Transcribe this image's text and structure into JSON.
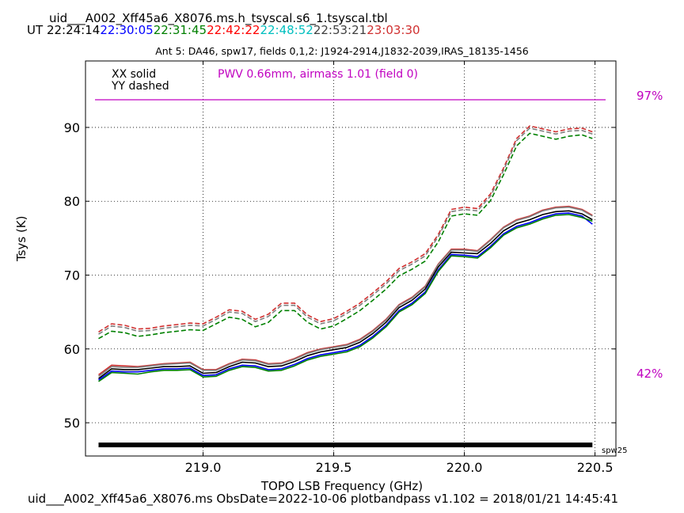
{
  "header": {
    "file_title": "uid___A002_Xff45a6_X8076.ms.h_tsyscal.s6_1.tsyscal.tbl",
    "ut_label": "UT",
    "ut_times": [
      {
        "text": "22:24:14",
        "color": "#000000"
      },
      {
        "text": "22:30:05",
        "color": "#0000ff"
      },
      {
        "text": "22:31:45",
        "color": "#008000"
      },
      {
        "text": "22:42:22",
        "color": "#ff0000"
      },
      {
        "text": "22:48:52",
        "color": "#00bfbf"
      },
      {
        "text": "22:53:21",
        "color": "#404040"
      },
      {
        "text": "23:03:30",
        "color": "#d03030"
      }
    ],
    "subtitle": "Ant 5: DA46,  spw17,  fields 0,1,2: J1924-2914,J1832-2039,IRAS_18135-1456"
  },
  "legend": {
    "xx": "XX solid",
    "yy": "YY dashed",
    "pwv": "PWV 0.66mm, airmass 1.01 (field 0)",
    "pwv_color": "#c000c0"
  },
  "atm": {
    "top_label": "97%",
    "bottom_label": "42%",
    "line_level_pct": 97,
    "color": "#c000c0"
  },
  "footer": {
    "text": "uid___A002_Xff45a6_X8076.ms  ObsDate=2022-10-06   plotbandpass v1.102 = 2018/01/21 14:45:41"
  },
  "chart_data": {
    "type": "line",
    "xlabel": "TOPO LSB Frequency (GHz)",
    "ylabel": "Tsys (K)",
    "xlim": [
      218.55,
      220.58
    ],
    "ylim": [
      45.5,
      99.0
    ],
    "xticks": [
      219.0,
      219.5,
      220.0,
      220.5
    ],
    "yticks": [
      50,
      60,
      70,
      80,
      90
    ],
    "grid": true,
    "spw_bar": {
      "label": "spw25",
      "x": [
        218.6,
        220.49
      ],
      "y": 47.0
    },
    "x": [
      218.6,
      218.65,
      218.7,
      218.75,
      218.8,
      218.85,
      218.9,
      218.95,
      219.0,
      219.05,
      219.1,
      219.15,
      219.2,
      219.25,
      219.3,
      219.35,
      219.4,
      219.45,
      219.5,
      219.55,
      219.6,
      219.65,
      219.7,
      219.75,
      219.8,
      219.85,
      219.9,
      219.95,
      220.0,
      220.05,
      220.1,
      220.15,
      220.2,
      220.25,
      220.3,
      220.35,
      220.4,
      220.45,
      220.49
    ],
    "series": [
      {
        "pol": "XX",
        "color": "#d03030",
        "dashed": false,
        "values": [
          56.5,
          57.8,
          57.7,
          57.6,
          57.8,
          58.0,
          58.1,
          58.2,
          57.2,
          57.2,
          58.0,
          58.6,
          58.5,
          58.0,
          58.1,
          58.7,
          59.5,
          60.0,
          60.3,
          60.6,
          61.3,
          62.5,
          64.0,
          66.0,
          67.0,
          68.5,
          71.5,
          73.5,
          73.5,
          73.3,
          74.8,
          76.5,
          77.5,
          78.0,
          78.8,
          79.2,
          79.3,
          78.9,
          78.1
        ]
      },
      {
        "pol": "XX",
        "color": "#808080",
        "dashed": false,
        "values": [
          56.3,
          57.6,
          57.5,
          57.5,
          57.7,
          57.9,
          58.0,
          58.1,
          57.1,
          57.1,
          57.9,
          58.5,
          58.4,
          57.9,
          58.0,
          58.6,
          59.4,
          59.9,
          60.2,
          60.5,
          61.2,
          62.4,
          63.9,
          65.9,
          66.9,
          68.4,
          71.4,
          73.4,
          73.4,
          73.2,
          74.7,
          76.4,
          77.4,
          77.9,
          78.7,
          79.1,
          79.2,
          78.8,
          78.0
        ]
      },
      {
        "pol": "XX",
        "color": "#000000",
        "dashed": false,
        "values": [
          56.0,
          57.3,
          57.2,
          57.2,
          57.4,
          57.6,
          57.6,
          57.7,
          56.7,
          56.8,
          57.6,
          58.2,
          58.1,
          57.6,
          57.7,
          58.3,
          59.1,
          59.6,
          59.9,
          60.2,
          60.9,
          62.1,
          63.6,
          65.6,
          66.6,
          68.1,
          71.1,
          73.1,
          73.0,
          72.9,
          74.3,
          76.0,
          77.0,
          77.5,
          78.2,
          78.6,
          78.7,
          78.3,
          77.5
        ]
      },
      {
        "pol": "XX",
        "color": "#0000ff",
        "dashed": false,
        "values": [
          55.8,
          57.0,
          56.9,
          56.9,
          57.1,
          57.3,
          57.3,
          57.4,
          56.4,
          56.5,
          57.3,
          57.8,
          57.7,
          57.2,
          57.3,
          57.9,
          58.7,
          59.2,
          59.5,
          59.8,
          60.5,
          61.7,
          63.2,
          65.2,
          66.2,
          67.7,
          70.7,
          72.8,
          72.7,
          72.5,
          73.9,
          75.6,
          76.6,
          77.1,
          77.8,
          78.3,
          78.4,
          78.0,
          76.9
        ]
      },
      {
        "pol": "XX",
        "color": "#008000",
        "dashed": false,
        "values": [
          55.6,
          56.8,
          56.7,
          56.6,
          56.9,
          57.1,
          57.1,
          57.2,
          56.2,
          56.3,
          57.1,
          57.6,
          57.5,
          57.0,
          57.1,
          57.7,
          58.5,
          59.0,
          59.3,
          59.6,
          60.3,
          61.5,
          63.0,
          65.0,
          66.0,
          67.5,
          70.5,
          72.6,
          72.5,
          72.3,
          73.7,
          75.4,
          76.4,
          76.9,
          77.6,
          78.1,
          78.2,
          77.8,
          77.3
        ]
      },
      {
        "pol": "YY",
        "color": "#d03030",
        "dashed": true,
        "values": [
          62.3,
          63.4,
          63.2,
          62.7,
          62.8,
          63.1,
          63.3,
          63.5,
          63.4,
          64.3,
          65.3,
          65.1,
          64.0,
          64.7,
          66.2,
          66.2,
          64.6,
          63.7,
          64.1,
          65.1,
          66.2,
          67.6,
          69.1,
          70.9,
          71.8,
          72.9,
          75.5,
          78.9,
          79.2,
          79.0,
          81.0,
          84.5,
          88.5,
          90.2,
          89.8,
          89.4,
          89.8,
          89.9,
          89.4
        ]
      },
      {
        "pol": "YY",
        "color": "#808080",
        "dashed": true,
        "values": [
          62.0,
          63.1,
          62.9,
          62.4,
          62.5,
          62.8,
          63.0,
          63.2,
          63.1,
          64.0,
          65.0,
          64.8,
          63.7,
          64.4,
          65.9,
          65.9,
          64.3,
          63.4,
          63.8,
          64.8,
          65.9,
          67.3,
          68.8,
          70.6,
          71.5,
          72.6,
          75.2,
          78.6,
          78.9,
          78.7,
          80.7,
          84.2,
          88.2,
          89.9,
          89.5,
          89.1,
          89.5,
          89.6,
          89.1
        ]
      },
      {
        "pol": "YY",
        "color": "#008000",
        "dashed": true,
        "values": [
          61.4,
          62.4,
          62.2,
          61.7,
          61.9,
          62.2,
          62.4,
          62.6,
          62.5,
          63.4,
          64.3,
          64.0,
          63.0,
          63.6,
          65.2,
          65.2,
          63.6,
          62.7,
          63.1,
          64.1,
          65.2,
          66.6,
          68.1,
          69.9,
          70.8,
          71.9,
          74.5,
          78.0,
          78.3,
          78.1,
          80.1,
          83.6,
          87.5,
          89.2,
          88.8,
          88.4,
          88.8,
          89.0,
          88.5
        ]
      }
    ]
  }
}
